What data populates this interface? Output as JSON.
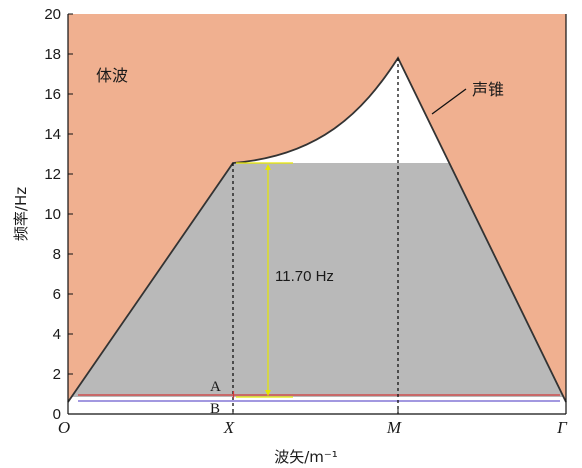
{
  "chart_data": {
    "type": "area",
    "title": "",
    "xlabel": "波矢/m⁻¹",
    "ylabel": "频率/Hz",
    "ylim": [
      0,
      20
    ],
    "yticks": [
      0,
      2,
      4,
      6,
      8,
      10,
      12,
      14,
      16,
      18,
      20
    ],
    "xticks": [
      {
        "label": "O",
        "x": 0
      },
      {
        "label": "X",
        "x": 1
      },
      {
        "label": "M",
        "x": 2
      },
      {
        "label": "Γ",
        "x": 3
      }
    ],
    "regions": [
      {
        "name": "体波",
        "color": "#f0b090"
      },
      {
        "name": "声锥",
        "color": "#ffffff"
      }
    ],
    "sound_cone": {
      "points": [
        {
          "x": 0,
          "y": 0.6
        },
        {
          "x": 1,
          "y": 12.55
        },
        {
          "x": 2,
          "y": 17.8
        },
        {
          "x": 3,
          "y": 0.6
        }
      ],
      "curve_segment": "X-M"
    },
    "band_gap": {
      "lower": 0.85,
      "upper": 12.55,
      "width_label": "11.70 Hz",
      "fill": "#b9b9b9"
    },
    "bands": [
      {
        "name": "A",
        "y": 0.95,
        "color": "#d23a3a"
      },
      {
        "name": "B",
        "y": 0.65,
        "color": "#6a5acd"
      }
    ],
    "annotations": {
      "bulk_label": "体波",
      "cone_label": "声锥",
      "gap_label": "11.70 Hz",
      "a_label": "A",
      "b_label": "B"
    },
    "colors": {
      "bulk": "#f0b090",
      "gap": "#b9b9b9",
      "cone_edge": "#333333",
      "gap_arrow": "#e6e600"
    }
  }
}
